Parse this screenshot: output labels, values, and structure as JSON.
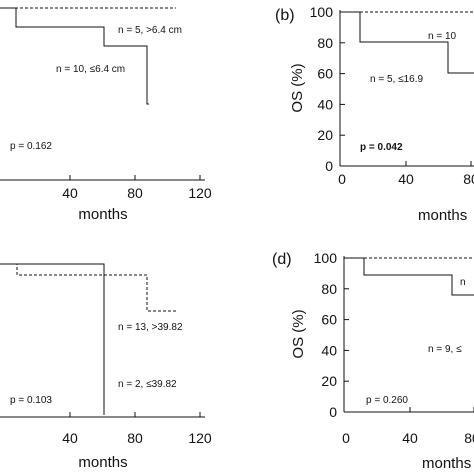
{
  "chart_data": [
    {
      "type": "line",
      "panel": "a",
      "panel_label": "",
      "xlabel": "months",
      "ylabel": "",
      "xlim": [
        0,
        120
      ],
      "ylim": [
        0,
        100
      ],
      "x_ticks": [
        "40",
        "80",
        "120"
      ],
      "y_ticks": [],
      "p_value": "p = 0.162",
      "p_value_color": "#111111",
      "series": [
        {
          "name": "n = 5,  >6.4 cm",
          "style": "dashed",
          "points": [
            [
              0,
              100
            ],
            [
              108,
              100
            ]
          ]
        },
        {
          "name": "n = 10,  ≤6.4 cm",
          "style": "solid",
          "points": [
            [
              0,
              100
            ],
            [
              10,
              90
            ],
            [
              64,
              90
            ],
            [
              64,
              80
            ],
            [
              90,
              80
            ],
            [
              90,
              0
            ]
          ]
        }
      ]
    },
    {
      "type": "line",
      "panel": "b",
      "panel_label": "(b)",
      "xlabel": "months",
      "ylabel": "OS (%)",
      "xlim": [
        0,
        120
      ],
      "ylim": [
        0,
        100
      ],
      "x_ticks": [
        "0",
        "40",
        "80"
      ],
      "y_ticks": [
        "0",
        "20",
        "40",
        "60",
        "80",
        "100"
      ],
      "p_value": "p = 0.042",
      "p_value_color": "#e8465a",
      "series": [
        {
          "name": "n = 10",
          "style": "dashed",
          "points": [
            [
              0,
              100
            ],
            [
              120,
              100
            ]
          ]
        },
        {
          "name": "n = 5,  ≤16.9",
          "style": "solid",
          "points": [
            [
              0,
              100
            ],
            [
              12,
              100
            ],
            [
              12,
              80
            ],
            [
              64,
              80
            ],
            [
              64,
              60
            ],
            [
              120,
              60
            ]
          ]
        }
      ]
    },
    {
      "type": "line",
      "panel": "c",
      "panel_label": "",
      "xlabel": "months",
      "ylabel": "",
      "xlim": [
        0,
        120
      ],
      "ylim": [
        0,
        100
      ],
      "x_ticks": [
        "40",
        "80",
        "120"
      ],
      "y_ticks": [],
      "p_value": "p = 0.103",
      "p_value_color": "#111111",
      "series": [
        {
          "name": "n = 13,  >39.82",
          "style": "dashed",
          "points": [
            [
              0,
              100
            ],
            [
              10,
              100
            ],
            [
              10,
              92
            ],
            [
              92,
              92
            ],
            [
              92,
              80
            ],
            [
              108,
              80
            ]
          ]
        },
        {
          "name": "n = 2,  ≤39.82",
          "style": "solid",
          "points": [
            [
              0,
              100
            ],
            [
              64,
              100
            ],
            [
              64,
              0
            ]
          ]
        }
      ]
    },
    {
      "type": "line",
      "panel": "d",
      "panel_label": "(d)",
      "xlabel": "months",
      "ylabel": "OS (%)",
      "xlim": [
        0,
        120
      ],
      "ylim": [
        0,
        100
      ],
      "x_ticks": [
        "0",
        "40",
        "80"
      ],
      "y_ticks": [
        "0",
        "20",
        "40",
        "60",
        "80",
        "100"
      ],
      "p_value": "p = 0.260",
      "p_value_color": "#111111",
      "series": [
        {
          "name": "n",
          "style": "dashed",
          "points": [
            [
              0,
              100
            ],
            [
              120,
              100
            ]
          ]
        },
        {
          "name": "n = 9,  ≤",
          "style": "solid",
          "points": [
            [
              0,
              100
            ],
            [
              12,
              100
            ],
            [
              12,
              89
            ],
            [
              65,
              89
            ],
            [
              65,
              76
            ],
            [
              120,
              76
            ]
          ]
        }
      ]
    }
  ]
}
